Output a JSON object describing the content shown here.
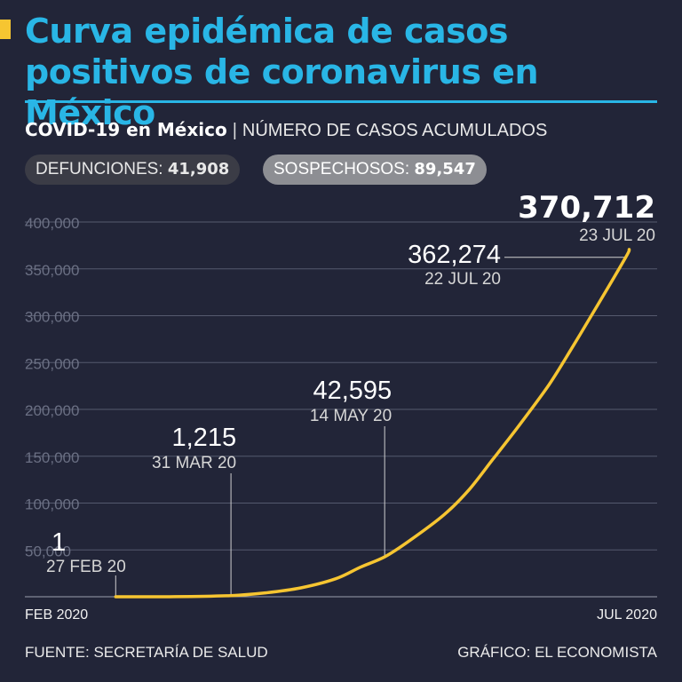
{
  "header": {
    "title": "Curva epidémica de casos positivos de coronavirus en México",
    "subtitle_bold": "COVID-19 en México",
    "subtitle_sep": "|",
    "subtitle_light": "NÚMERO DE CASOS ACUMULADOS"
  },
  "stats": {
    "defunciones_label": "DEFUNCIONES:",
    "defunciones_value": "41,908",
    "sospechosos_label": "SOSPECHOSOS:",
    "sospechosos_value": "89,547"
  },
  "footer": {
    "source": "FUENTE: SECRETARÍA DE SALUD",
    "credit": "GRÁFICO: EL ECONOMISTA"
  },
  "colors": {
    "background": "#222538",
    "title": "#29b6e6",
    "line": "#f6c531",
    "grid": "#555a6e",
    "tick": "#6b7084"
  },
  "chart_data": {
    "type": "line",
    "title": "",
    "xlabel": "",
    "ylabel": "",
    "x_ticks": [
      "FEB 2020",
      "JUL 2020"
    ],
    "y_ticks": [
      "50,000",
      "100,000",
      "150,000",
      "200,000",
      "250,000",
      "300,000",
      "350,000",
      "400,000"
    ],
    "y_tick_values": [
      50000,
      100000,
      150000,
      200000,
      250000,
      300000,
      350000,
      400000
    ],
    "ylim": [
      0,
      400000
    ],
    "xlim": [
      "2020-02-01",
      "2020-07-31"
    ],
    "grid": true,
    "series": [
      {
        "x": [
          "2020-02-27",
          "2020-03-15",
          "2020-03-31",
          "2020-04-10",
          "2020-04-20",
          "2020-04-30",
          "2020-05-07",
          "2020-05-14",
          "2020-05-21",
          "2020-05-31",
          "2020-06-07",
          "2020-06-14",
          "2020-06-21",
          "2020-06-30",
          "2020-07-07",
          "2020-07-14",
          "2020-07-22",
          "2020-07-23"
        ],
        "y": [
          1,
          60,
          1215,
          4200,
          9500,
          19200,
          31500,
          42595,
          59500,
          87500,
          113600,
          146800,
          180500,
          226100,
          268000,
          311500,
          362274,
          370712
        ]
      }
    ],
    "annotations": [
      {
        "value": "1",
        "date": "27 FEB 20",
        "x": "2020-02-27",
        "y": 1
      },
      {
        "value": "1,215",
        "date": "31 MAR 20",
        "x": "2020-03-31",
        "y": 1215
      },
      {
        "value": "42,595",
        "date": "14 MAY 20",
        "x": "2020-05-14",
        "y": 42595
      },
      {
        "value": "362,274",
        "date": "22 JUL 20",
        "x": "2020-07-22",
        "y": 362274
      },
      {
        "value": "370,712",
        "date": "23 JUL 20",
        "x": "2020-07-23",
        "y": 370712
      }
    ]
  }
}
